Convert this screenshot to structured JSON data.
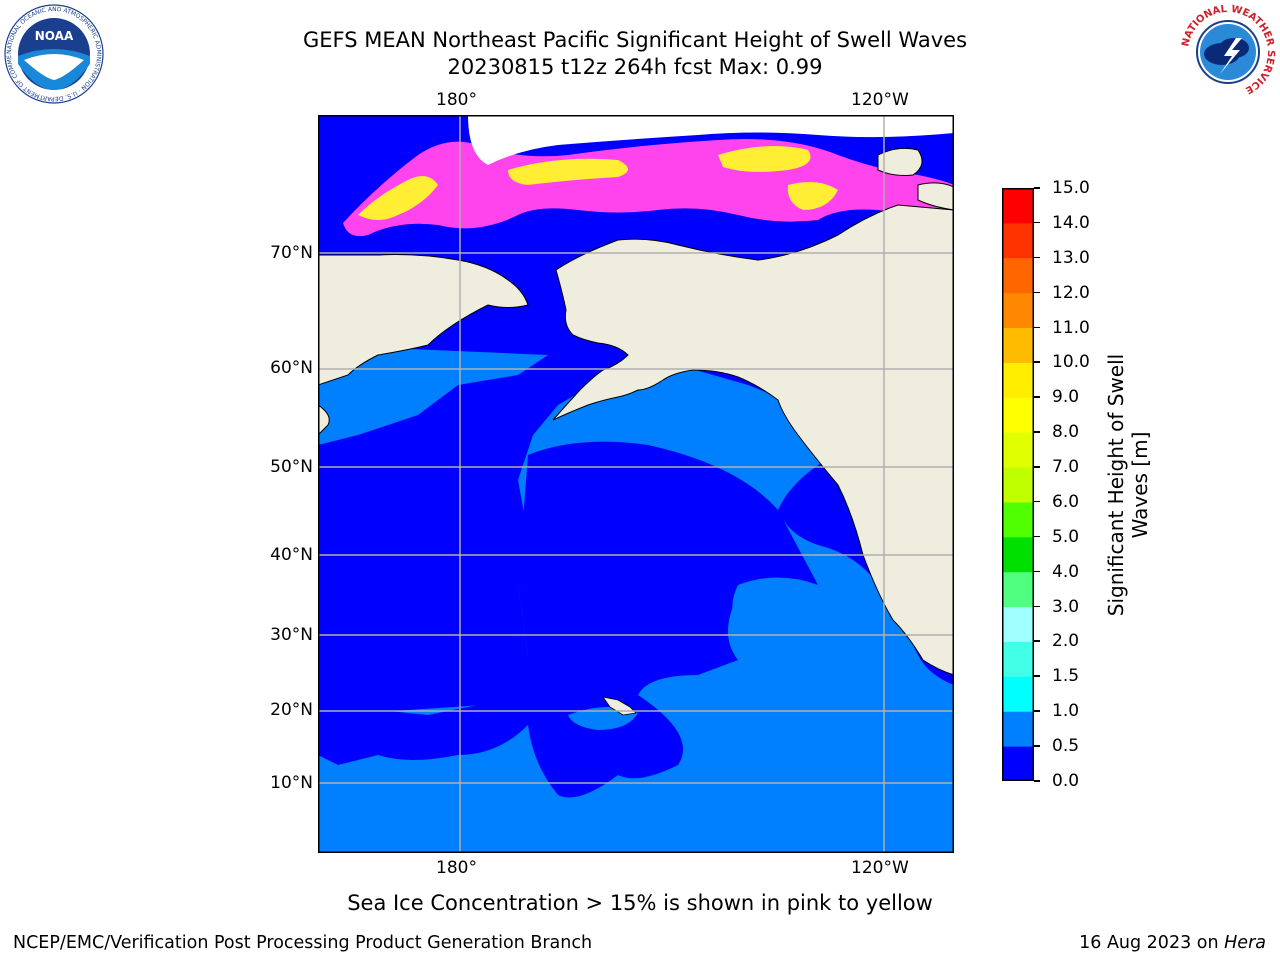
{
  "header": {
    "title_line1": "GEFS MEAN Northeast Pacific Significant Height of Swell Waves",
    "title_line2": "20230815 t12z 264h fcst   Max: 0.99"
  },
  "logos": {
    "noaa_text": "NOAA",
    "noaa_ring_text": "NATIONAL OCEANIC AND ATMOSPHERIC ADMINISTRATION · U.S. DEPARTMENT OF COMMERCE",
    "nws_ring_text": "NATIONAL WEATHER SERVICE"
  },
  "map": {
    "lon_labels": [
      "180°",
      "120°W"
    ],
    "lat_labels": [
      "70°N",
      "60°N",
      "50°N",
      "40°N",
      "30°N",
      "20°N",
      "10°N"
    ],
    "colors": {
      "land": "#efedde",
      "swell_0_05": "#0000ff",
      "swell_05_10": "#0080ff",
      "ice_pink": "#ff44ee",
      "ice_yellow": "#ffee33",
      "ice_white": "#ffffff",
      "grid": "#b0b0b0"
    }
  },
  "colorbar": {
    "label_line1": "Significant Height of Swell",
    "label_line2": "Waves [m]",
    "ticks": [
      "0.0",
      "0.5",
      "1.0",
      "1.5",
      "2.0",
      "3.0",
      "4.0",
      "5.0",
      "6.0",
      "7.0",
      "8.0",
      "9.0",
      "10.0",
      "11.0",
      "12.0",
      "13.0",
      "14.0",
      "15.0"
    ],
    "colors": [
      "#0000ff",
      "#0080ff",
      "#00ffff",
      "#40ffe6",
      "#a0ffff",
      "#50ff80",
      "#00e000",
      "#50ff00",
      "#c0ff00",
      "#e0ff00",
      "#ffff00",
      "#ffee00",
      "#ffbb00",
      "#ff8800",
      "#ff6600",
      "#ff3300",
      "#ff0000"
    ]
  },
  "caption": "Sea Ice Concentration > 15% is shown in pink to yellow",
  "footer": {
    "left": "NCEP/EMC/Verification Post Processing Product Generation Branch",
    "right_prefix": "16 Aug 2023 on ",
    "right_host": "Hera"
  }
}
